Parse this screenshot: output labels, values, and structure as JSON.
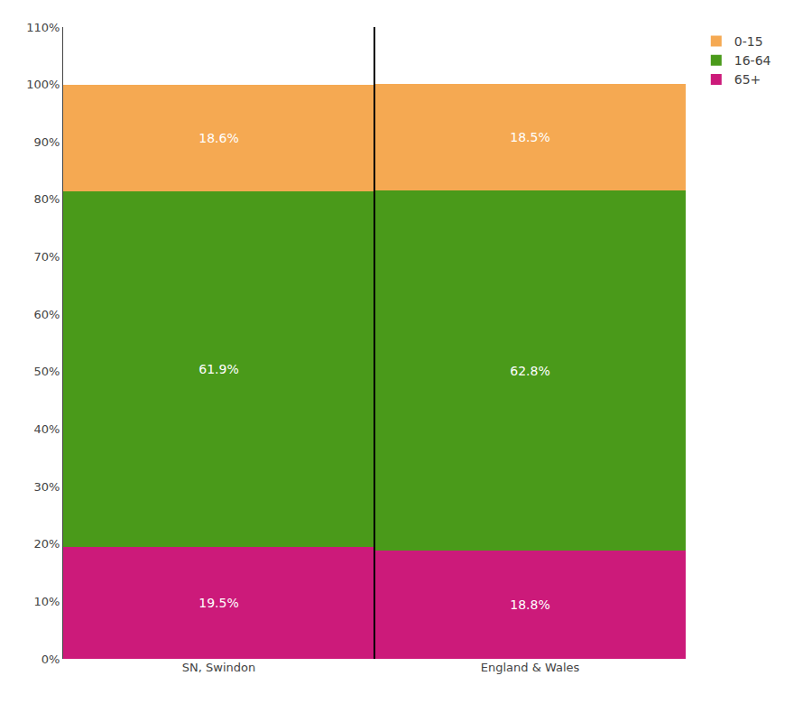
{
  "chart_data": {
    "type": "bar",
    "stacked": true,
    "categories": [
      "SN, Swindon",
      "England & Wales"
    ],
    "series": [
      {
        "name": "65+",
        "color": "#cc1a7a",
        "values": [
          19.5,
          18.8
        ],
        "value_labels": [
          "19.5%",
          "18.8%"
        ]
      },
      {
        "name": "16-64",
        "color": "#4a9a1a",
        "values": [
          61.9,
          62.8
        ],
        "value_labels": [
          "61.9%",
          "62.8%"
        ]
      },
      {
        "name": "0-15",
        "color": "#f5a952",
        "values": [
          18.6,
          18.5
        ],
        "value_labels": [
          "18.6%",
          "18.5%"
        ]
      }
    ],
    "ylim": [
      0,
      110
    ],
    "yticks": [
      {
        "value": 0,
        "label": "0%"
      },
      {
        "value": 10,
        "label": "10%"
      },
      {
        "value": 20,
        "label": "20%"
      },
      {
        "value": 30,
        "label": "30%"
      },
      {
        "value": 40,
        "label": "40%"
      },
      {
        "value": 50,
        "label": "50%"
      },
      {
        "value": 60,
        "label": "60%"
      },
      {
        "value": 70,
        "label": "70%"
      },
      {
        "value": 80,
        "label": "80%"
      },
      {
        "value": 90,
        "label": "90%"
      },
      {
        "value": 100,
        "label": "100%"
      },
      {
        "value": 110,
        "label": "110%"
      }
    ],
    "grid": false,
    "legend": "upper right",
    "data_labels": true
  }
}
